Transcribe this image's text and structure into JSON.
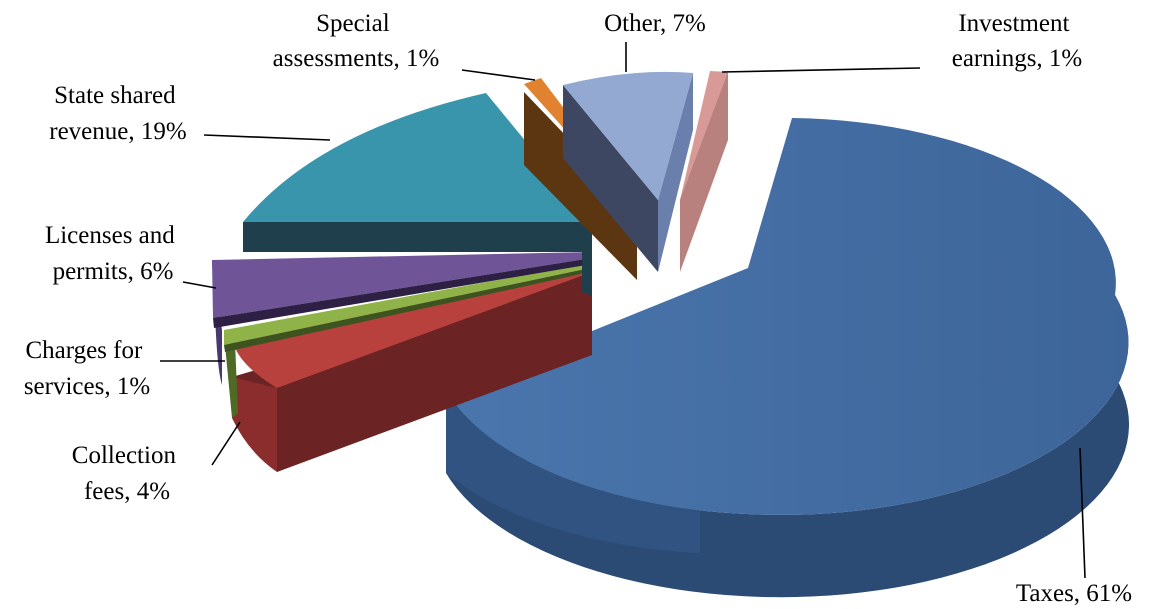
{
  "chart_data": {
    "type": "pie",
    "style": "3d-exploded",
    "slices": [
      {
        "label": "Taxes, 61%",
        "name": "Taxes",
        "value": 61,
        "color": "#4470a6"
      },
      {
        "label": "Collection fees, 4%",
        "name": "Collection fees",
        "value": 4,
        "color": "#b9413d"
      },
      {
        "label": "Charges for services, 1%",
        "name": "Charges for services",
        "value": 1,
        "color": "#8fb349"
      },
      {
        "label": "Licenses and permits, 6%",
        "name": "Licenses and permits",
        "value": 6,
        "color": "#6f5497"
      },
      {
        "label": "State shared revenue, 19%",
        "name": "State shared revenue",
        "value": 19,
        "color": "#3995ab"
      },
      {
        "label": "Special assessments, 1%",
        "name": "Special assessments",
        "value": 1,
        "color": "#e0822f"
      },
      {
        "label": "Other, 7%",
        "name": "Other",
        "value": 7,
        "color": "#93a9d2"
      },
      {
        "label": "Investment earnings, 1%",
        "name": "Investment earnings",
        "value": 1,
        "color": "#d89a97"
      }
    ],
    "legend": "none",
    "data_labels": "outside with leader lines"
  },
  "labels": {
    "taxes": [
      "Taxes, 61%"
    ],
    "collection_fees": [
      "Collection",
      "fees, 4%"
    ],
    "charges_for_services": [
      "Charges for",
      "services, 1%"
    ],
    "licenses_and_permits": [
      "Licenses and",
      "permits, 6%"
    ],
    "state_shared_revenue": [
      "State shared",
      "revenue, 19%"
    ],
    "special_assessments": [
      "Special",
      "assessments, 1%"
    ],
    "other": [
      "Other, 7%"
    ],
    "investment_earnings": [
      "Investment",
      "earnings, 1%"
    ]
  }
}
